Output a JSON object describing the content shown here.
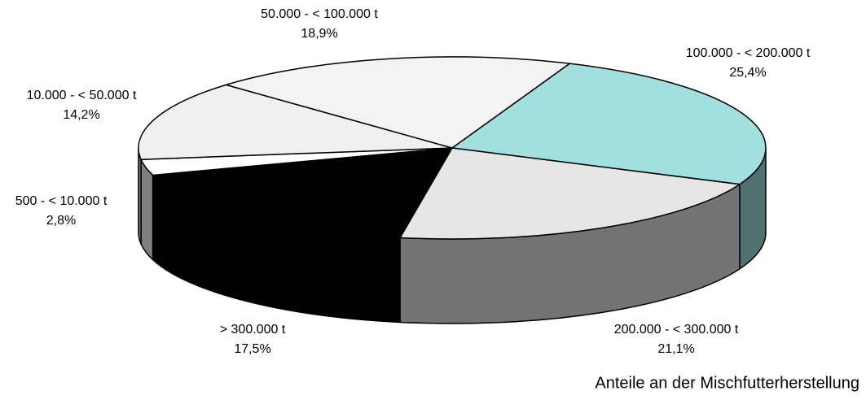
{
  "chart_data": {
    "type": "pie",
    "title": "Anteile an der Mischfutterherstellung",
    "categories": [
      "100.000 - < 200.000 t",
      "200.000 - < 300.000 t",
      "> 300.000 t",
      "500 - < 10.000 t",
      "10.000 - < 50.000 t",
      "50.000 - < 100.000 t"
    ],
    "values": [
      25.4,
      21.1,
      17.5,
      2.8,
      14.2,
      18.9
    ],
    "value_labels": [
      "25,4%",
      "21,1%",
      "17,5%",
      "2,8%",
      "14,2%",
      "18,9%"
    ],
    "colors": [
      "#a2dfdf",
      "#e6e6e6",
      "#000000",
      "#ffffff",
      "#f0f0f0",
      "#f3f3f3"
    ]
  }
}
